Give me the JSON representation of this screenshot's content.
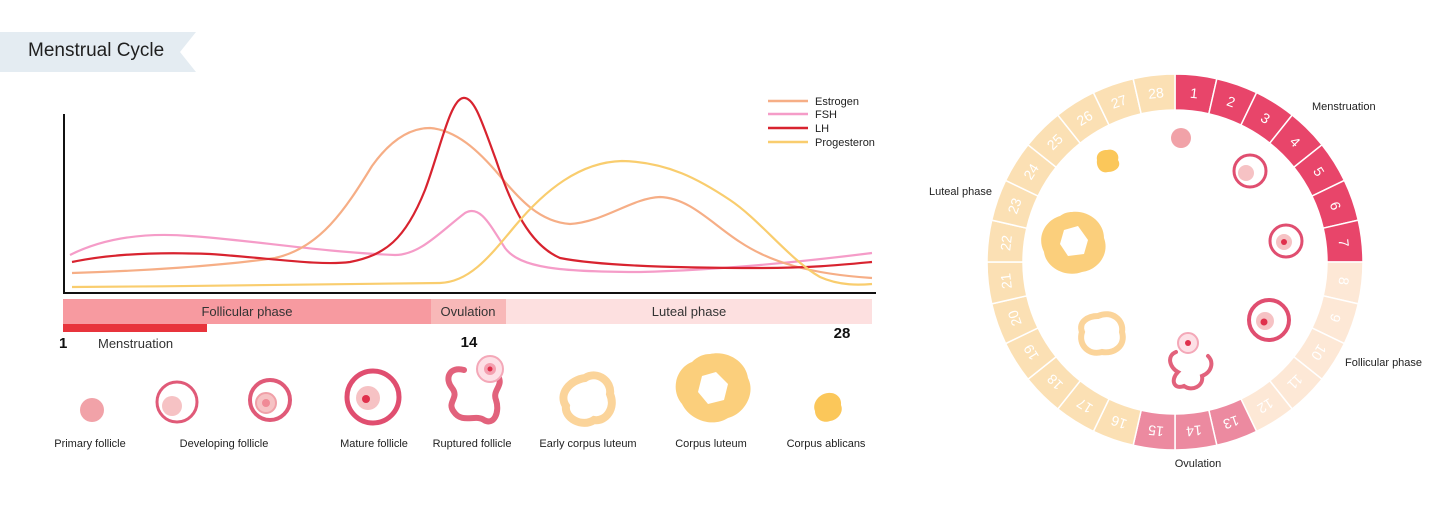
{
  "title": "Menstrual Cycle",
  "legend": [
    "Estrogen",
    "FSH",
    "LH",
    "Progesteron"
  ],
  "colors": {
    "estrogen": "#f6ae86",
    "fsh": "#f59cc8",
    "lh": "#d8232f",
    "progesteron": "#f9cd6e",
    "follicular_bar": "#f79aa0",
    "ovulation_bar": "#f8b8b8",
    "luteal_bar": "#fde0e0",
    "menstruation_bar": "#e8343c",
    "ring_menstruation": "#e8456a",
    "ring_luteal": "#fbe0b4",
    "ring_follicular": "#fde8d6",
    "ring_ovulation": "#ec8aa0"
  },
  "phases": {
    "follicular": "Follicular phase",
    "ovulation": "Ovulation",
    "luteal": "Luteal phase",
    "menstruation": "Menstruation"
  },
  "day_markers": {
    "start": "1",
    "mid": "14",
    "end": "28"
  },
  "stages": [
    "Primary follicle",
    "Developing follicle",
    "Mature follicle",
    "Ruptured follicle",
    "Early corpus luteum",
    "Corpus luteum",
    "Corpus ablicans"
  ],
  "wheel": {
    "days": [
      "1",
      "2",
      "3",
      "4",
      "5",
      "6",
      "7",
      "8",
      "9",
      "10",
      "11",
      "12",
      "13",
      "14",
      "15",
      "16",
      "17",
      "18",
      "19",
      "20",
      "21",
      "22",
      "23",
      "24",
      "25",
      "26",
      "27",
      "28"
    ],
    "labels": {
      "menstruation": "Menstruation",
      "follicular": "Follicular phase",
      "ovulation": "Ovulation",
      "luteal": "Luteal phase"
    }
  }
}
